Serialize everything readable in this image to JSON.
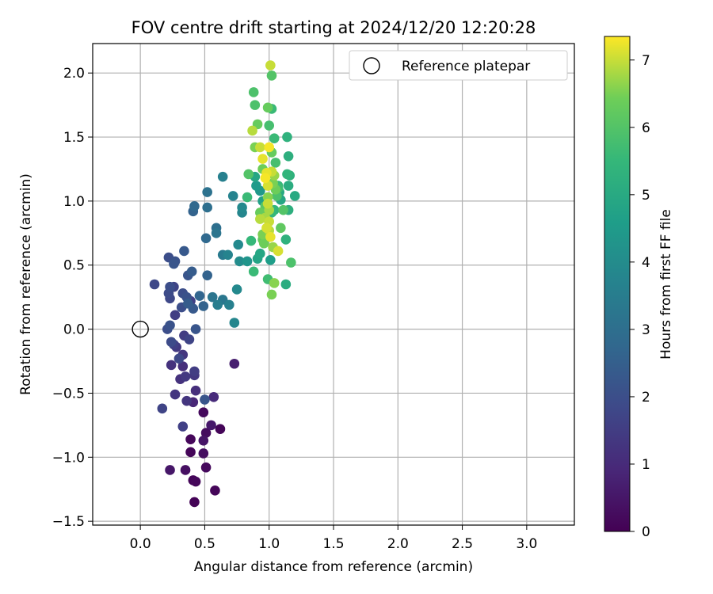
{
  "chart_data": {
    "type": "scatter",
    "title": "FOV centre drift starting at 2024/12/20 12:20:28",
    "xlabel": "Angular distance from reference (arcmin)",
    "ylabel": "Rotation from reference (arcmin)",
    "xlim": [
      -0.37,
      3.37
    ],
    "ylim": [
      -1.53,
      2.23
    ],
    "xticks": [
      "0.0",
      "0.5",
      "1.0",
      "1.5",
      "2.0",
      "2.5",
      "3.0"
    ],
    "yticks": [
      "−1.5",
      "−1.0",
      "−0.5",
      "0.0",
      "0.5",
      "1.0",
      "1.5",
      "2.0"
    ],
    "grid": true,
    "legend": {
      "position": "top-right",
      "entries": [
        "Reference platepar"
      ]
    },
    "colormap": "viridis",
    "colorbar": {
      "label": "Hours from first FF file",
      "range": [
        0,
        7.35
      ],
      "ticks": [
        "0",
        "1",
        "2",
        "3",
        "4",
        "5",
        "6",
        "7"
      ]
    },
    "reference_point": {
      "x": 0.0,
      "y": 0.0
    },
    "points": [
      {
        "x": 0.42,
        "y": -1.35,
        "h": 0.05
      },
      {
        "x": 0.41,
        "y": -1.18,
        "h": 0.1
      },
      {
        "x": 0.43,
        "y": -1.19,
        "h": 0.15
      },
      {
        "x": 0.58,
        "y": -1.26,
        "h": 0.12
      },
      {
        "x": 0.51,
        "y": -1.08,
        "h": 0.2
      },
      {
        "x": 0.35,
        "y": -1.1,
        "h": 0.35
      },
      {
        "x": 0.23,
        "y": -1.1,
        "h": 0.5
      },
      {
        "x": 0.39,
        "y": -0.96,
        "h": 0.1
      },
      {
        "x": 0.49,
        "y": -0.97,
        "h": 0.3
      },
      {
        "x": 0.39,
        "y": -0.86,
        "h": 0.15
      },
      {
        "x": 0.49,
        "y": -0.87,
        "h": 0.45
      },
      {
        "x": 0.51,
        "y": -0.81,
        "h": 0.25
      },
      {
        "x": 0.62,
        "y": -0.78,
        "h": 0.1
      },
      {
        "x": 0.55,
        "y": -0.75,
        "h": 0.55
      },
      {
        "x": 0.33,
        "y": -0.76,
        "h": 1.6
      },
      {
        "x": 0.49,
        "y": -0.65,
        "h": 0.2
      },
      {
        "x": 0.17,
        "y": -0.62,
        "h": 1.7
      },
      {
        "x": 0.36,
        "y": -0.56,
        "h": 1.3
      },
      {
        "x": 0.41,
        "y": -0.57,
        "h": 0.9
      },
      {
        "x": 0.5,
        "y": -0.55,
        "h": 2.2
      },
      {
        "x": 0.57,
        "y": -0.53,
        "h": 1.0
      },
      {
        "x": 0.27,
        "y": -0.51,
        "h": 1.3
      },
      {
        "x": 0.43,
        "y": -0.48,
        "h": 1.1
      },
      {
        "x": 0.31,
        "y": -0.39,
        "h": 1.2
      },
      {
        "x": 0.35,
        "y": -0.37,
        "h": 1.4
      },
      {
        "x": 0.42,
        "y": -0.36,
        "h": 1.35
      },
      {
        "x": 0.42,
        "y": -0.33,
        "h": 1.5
      },
      {
        "x": 0.73,
        "y": -0.27,
        "h": 0.7
      },
      {
        "x": 0.24,
        "y": -0.28,
        "h": 1.2
      },
      {
        "x": 0.33,
        "y": -0.29,
        "h": 1.1
      },
      {
        "x": 0.3,
        "y": -0.23,
        "h": 1.8
      },
      {
        "x": 0.33,
        "y": -0.2,
        "h": 1.3
      },
      {
        "x": 0.28,
        "y": -0.14,
        "h": 1.4
      },
      {
        "x": 0.24,
        "y": -0.1,
        "h": 1.9
      },
      {
        "x": 0.26,
        "y": -0.12,
        "h": 1.6
      },
      {
        "x": 0.38,
        "y": -0.08,
        "h": 1.7
      },
      {
        "x": 0.34,
        "y": -0.05,
        "h": 1.5
      },
      {
        "x": 0.21,
        "y": 0.0,
        "h": 2.0
      },
      {
        "x": 0.23,
        "y": 0.03,
        "h": 2.1
      },
      {
        "x": 0.43,
        "y": 0.0,
        "h": 2.2
      },
      {
        "x": 0.27,
        "y": 0.11,
        "h": 1.5
      },
      {
        "x": 0.32,
        "y": 0.17,
        "h": 2.0
      },
      {
        "x": 0.37,
        "y": 0.2,
        "h": 2.4
      },
      {
        "x": 0.41,
        "y": 0.16,
        "h": 2.3
      },
      {
        "x": 0.49,
        "y": 0.18,
        "h": 2.6
      },
      {
        "x": 0.23,
        "y": 0.24,
        "h": 1.8
      },
      {
        "x": 0.22,
        "y": 0.28,
        "h": 1.9
      },
      {
        "x": 0.39,
        "y": 0.22,
        "h": 1.6
      },
      {
        "x": 0.33,
        "y": 0.28,
        "h": 2.0
      },
      {
        "x": 0.36,
        "y": 0.25,
        "h": 2.1
      },
      {
        "x": 0.46,
        "y": 0.26,
        "h": 2.7
      },
      {
        "x": 0.56,
        "y": 0.25,
        "h": 3.2
      },
      {
        "x": 0.6,
        "y": 0.19,
        "h": 3.5
      },
      {
        "x": 0.64,
        "y": 0.23,
        "h": 3.3
      },
      {
        "x": 0.69,
        "y": 0.19,
        "h": 3.6
      },
      {
        "x": 0.73,
        "y": 0.05,
        "h": 3.8
      },
      {
        "x": 0.75,
        "y": 0.31,
        "h": 3.9
      },
      {
        "x": 0.11,
        "y": 0.35,
        "h": 1.8
      },
      {
        "x": 0.23,
        "y": 0.33,
        "h": 2.0
      },
      {
        "x": 0.26,
        "y": 0.33,
        "h": 1.7
      },
      {
        "x": 0.37,
        "y": 0.42,
        "h": 2.2
      },
      {
        "x": 0.4,
        "y": 0.45,
        "h": 2.4
      },
      {
        "x": 0.52,
        "y": 0.42,
        "h": 2.6
      },
      {
        "x": 0.22,
        "y": 0.56,
        "h": 2.0
      },
      {
        "x": 0.26,
        "y": 0.51,
        "h": 2.2
      },
      {
        "x": 0.27,
        "y": 0.53,
        "h": 2.1
      },
      {
        "x": 0.34,
        "y": 0.61,
        "h": 2.3
      },
      {
        "x": 0.51,
        "y": 0.71,
        "h": 2.8
      },
      {
        "x": 0.59,
        "y": 0.79,
        "h": 3.0
      },
      {
        "x": 0.59,
        "y": 0.75,
        "h": 3.2
      },
      {
        "x": 0.64,
        "y": 0.58,
        "h": 3.4
      },
      {
        "x": 0.68,
        "y": 0.58,
        "h": 3.7
      },
      {
        "x": 0.76,
        "y": 0.66,
        "h": 3.9
      },
      {
        "x": 0.77,
        "y": 0.53,
        "h": 4.0
      },
      {
        "x": 0.41,
        "y": 0.92,
        "h": 2.6
      },
      {
        "x": 0.42,
        "y": 0.96,
        "h": 2.8
      },
      {
        "x": 0.52,
        "y": 0.95,
        "h": 3.0
      },
      {
        "x": 0.52,
        "y": 1.07,
        "h": 3.1
      },
      {
        "x": 0.64,
        "y": 1.19,
        "h": 3.6
      },
      {
        "x": 0.72,
        "y": 1.04,
        "h": 3.7
      },
      {
        "x": 0.79,
        "y": 0.91,
        "h": 3.8
      },
      {
        "x": 0.79,
        "y": 0.95,
        "h": 3.9
      },
      {
        "x": 0.83,
        "y": 0.53,
        "h": 4.3
      },
      {
        "x": 0.86,
        "y": 0.69,
        "h": 5.5
      },
      {
        "x": 0.88,
        "y": 0.45,
        "h": 5.6
      },
      {
        "x": 0.91,
        "y": 0.55,
        "h": 4.8
      },
      {
        "x": 0.93,
        "y": 0.59,
        "h": 4.9
      },
      {
        "x": 0.99,
        "y": 0.39,
        "h": 5.7
      },
      {
        "x": 1.02,
        "y": 0.27,
        "h": 6.5
      },
      {
        "x": 1.04,
        "y": 0.36,
        "h": 6.6
      },
      {
        "x": 1.07,
        "y": 0.61,
        "h": 7.1
      },
      {
        "x": 1.01,
        "y": 0.54,
        "h": 4.6
      },
      {
        "x": 1.09,
        "y": 0.79,
        "h": 6.2
      },
      {
        "x": 1.11,
        "y": 0.93,
        "h": 6.0
      },
      {
        "x": 1.13,
        "y": 0.7,
        "h": 5.3
      },
      {
        "x": 1.13,
        "y": 0.35,
        "h": 5.1
      },
      {
        "x": 1.15,
        "y": 0.93,
        "h": 5.2
      },
      {
        "x": 1.17,
        "y": 0.52,
        "h": 5.9
      },
      {
        "x": 1.2,
        "y": 1.04,
        "h": 5.0
      },
      {
        "x": 1.15,
        "y": 1.12,
        "h": 5.1
      },
      {
        "x": 1.14,
        "y": 1.21,
        "h": 5.4
      },
      {
        "x": 1.16,
        "y": 1.2,
        "h": 5.3
      },
      {
        "x": 1.15,
        "y": 1.35,
        "h": 5.2
      },
      {
        "x": 1.14,
        "y": 1.5,
        "h": 5.3
      },
      {
        "x": 1.09,
        "y": 1.01,
        "h": 4.9
      },
      {
        "x": 1.07,
        "y": 1.12,
        "h": 5.5
      },
      {
        "x": 1.05,
        "y": 1.3,
        "h": 5.8
      },
      {
        "x": 1.04,
        "y": 1.49,
        "h": 5.6
      },
      {
        "x": 1.02,
        "y": 1.72,
        "h": 5.6
      },
      {
        "x": 1.0,
        "y": 1.59,
        "h": 5.8
      },
      {
        "x": 0.99,
        "y": 1.73,
        "h": 6.3
      },
      {
        "x": 1.02,
        "y": 1.98,
        "h": 6.0
      },
      {
        "x": 1.01,
        "y": 2.06,
        "h": 7.0
      },
      {
        "x": 0.88,
        "y": 1.85,
        "h": 5.9
      },
      {
        "x": 0.89,
        "y": 1.75,
        "h": 5.9
      },
      {
        "x": 0.91,
        "y": 1.6,
        "h": 6.3
      },
      {
        "x": 0.87,
        "y": 1.55,
        "h": 6.9
      },
      {
        "x": 0.89,
        "y": 1.42,
        "h": 6.5
      },
      {
        "x": 0.93,
        "y": 1.42,
        "h": 7.0
      },
      {
        "x": 0.95,
        "y": 1.25,
        "h": 6.4
      },
      {
        "x": 0.84,
        "y": 1.21,
        "h": 6.0
      },
      {
        "x": 0.83,
        "y": 1.03,
        "h": 5.6
      },
      {
        "x": 0.89,
        "y": 1.19,
        "h": 4.9
      },
      {
        "x": 0.9,
        "y": 1.12,
        "h": 4.5
      },
      {
        "x": 0.93,
        "y": 1.08,
        "h": 4.4
      },
      {
        "x": 0.95,
        "y": 1.0,
        "h": 4.7
      },
      {
        "x": 0.96,
        "y": 0.88,
        "h": 5.2
      },
      {
        "x": 0.97,
        "y": 0.96,
        "h": 6.1
      },
      {
        "x": 0.95,
        "y": 1.33,
        "h": 7.2
      },
      {
        "x": 0.97,
        "y": 1.18,
        "h": 7.3
      },
      {
        "x": 0.99,
        "y": 1.12,
        "h": 7.1
      },
      {
        "x": 0.98,
        "y": 1.22,
        "h": 7.2
      },
      {
        "x": 1.0,
        "y": 1.42,
        "h": 7.3
      },
      {
        "x": 1.02,
        "y": 1.38,
        "h": 6.3
      },
      {
        "x": 1.02,
        "y": 1.23,
        "h": 7.0
      },
      {
        "x": 1.04,
        "y": 1.2,
        "h": 6.7
      },
      {
        "x": 1.03,
        "y": 1.14,
        "h": 6.5
      },
      {
        "x": 1.05,
        "y": 1.09,
        "h": 6.4
      },
      {
        "x": 1.07,
        "y": 1.1,
        "h": 5.7
      },
      {
        "x": 1.08,
        "y": 1.07,
        "h": 5.0
      },
      {
        "x": 1.06,
        "y": 1.04,
        "h": 5.9
      },
      {
        "x": 0.99,
        "y": 1.03,
        "h": 6.6
      },
      {
        "x": 0.97,
        "y": 0.87,
        "h": 6.8
      },
      {
        "x": 1.0,
        "y": 0.84,
        "h": 7.0
      },
      {
        "x": 0.98,
        "y": 0.79,
        "h": 7.1
      },
      {
        "x": 0.95,
        "y": 0.74,
        "h": 6.5
      },
      {
        "x": 1.0,
        "y": 0.77,
        "h": 6.9
      },
      {
        "x": 1.01,
        "y": 0.72,
        "h": 7.2
      },
      {
        "x": 0.95,
        "y": 0.7,
        "h": 6.2
      },
      {
        "x": 0.96,
        "y": 0.67,
        "h": 6.4
      },
      {
        "x": 1.0,
        "y": 0.93,
        "h": 6.8
      },
      {
        "x": 1.02,
        "y": 0.91,
        "h": 5.5
      },
      {
        "x": 1.04,
        "y": 0.93,
        "h": 5.4
      },
      {
        "x": 1.03,
        "y": 0.64,
        "h": 6.7
      },
      {
        "x": 0.99,
        "y": 0.98,
        "h": 7.0
      },
      {
        "x": 0.93,
        "y": 0.86,
        "h": 6.9
      },
      {
        "x": 0.93,
        "y": 0.91,
        "h": 6.3
      }
    ]
  }
}
